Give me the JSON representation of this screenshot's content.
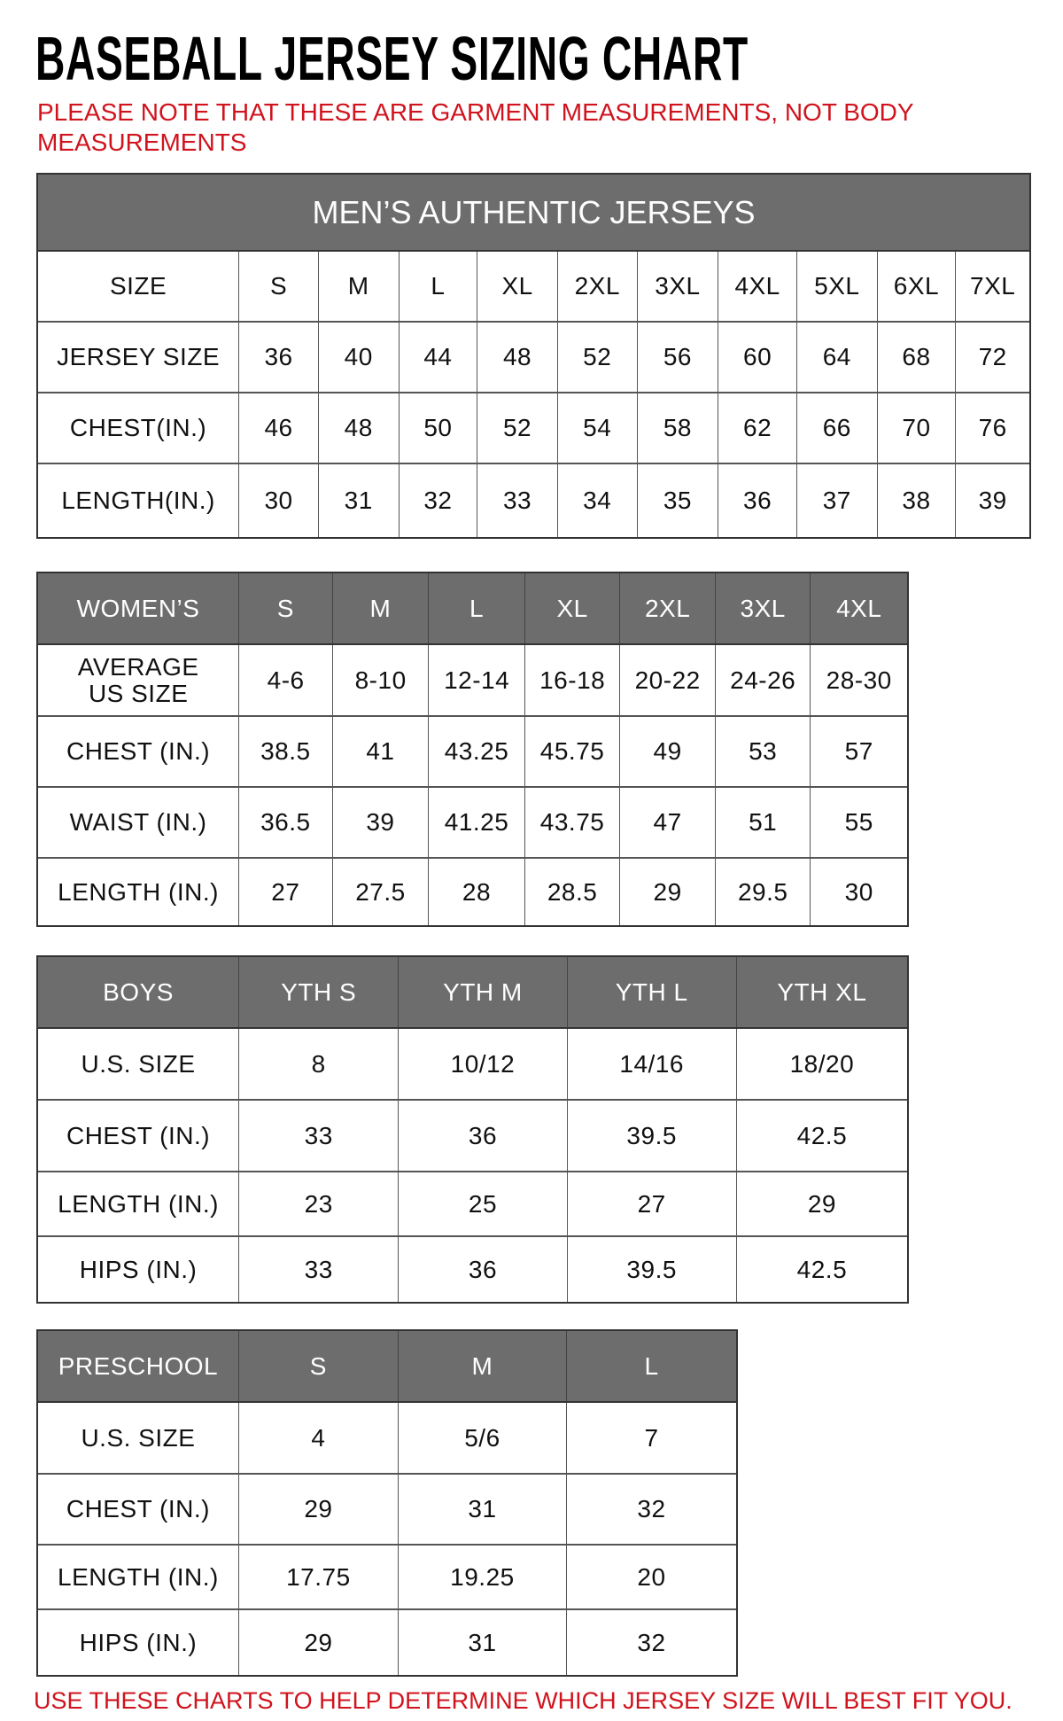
{
  "title": "BASEBALL JERSEY SIZING CHART",
  "note": "PLEASE NOTE THAT THESE ARE GARMENT MEASUREMENTS, NOT BODY MEASUREMENTS",
  "footer": "USE THESE CHARTS TO HELP DETERMINE WHICH JERSEY SIZE WILL BEST FIT YOU.",
  "colors": {
    "header_bg": "#6d6d6d",
    "accent_red": "#d0131d"
  },
  "tables": [
    {
      "name": "mens",
      "band_title": "MEN’S AUTHENTIC JERSEYS",
      "header_gray": false,
      "rows": [
        [
          "SIZE",
          "S",
          "M",
          "L",
          "XL",
          "2XL",
          "3XL",
          "4XL",
          "5XL",
          "6XL",
          "7XL"
        ],
        [
          "JERSEY SIZE",
          "36",
          "40",
          "44",
          "48",
          "52",
          "56",
          "60",
          "64",
          "68",
          "72"
        ],
        [
          "CHEST(IN.)",
          "46",
          "48",
          "50",
          "52",
          "54",
          "58",
          "62",
          "66",
          "70",
          "76"
        ],
        [
          "LENGTH(IN.)",
          "30",
          "31",
          "32",
          "33",
          "34",
          "35",
          "36",
          "37",
          "38",
          "39"
        ]
      ]
    },
    {
      "name": "womens",
      "header_gray": true,
      "rows": [
        [
          "WOMEN’S",
          "S",
          "M",
          "L",
          "XL",
          "2XL",
          "3XL",
          "4XL"
        ],
        [
          "AVERAGE US SIZE",
          "4-6",
          "8-10",
          "12-14",
          "16-18",
          "20-22",
          "24-26",
          "28-30"
        ],
        [
          "CHEST (IN.)",
          "38.5",
          "41",
          "43.25",
          "45.75",
          "49",
          "53",
          "57"
        ],
        [
          "WAIST (IN.)",
          "36.5",
          "39",
          "41.25",
          "43.75",
          "47",
          "51",
          "55"
        ],
        [
          "LENGTH (IN.)",
          "27",
          "27.5",
          "28",
          "28.5",
          "29",
          "29.5",
          "30"
        ]
      ]
    },
    {
      "name": "boys",
      "header_gray": true,
      "rows": [
        [
          "BOYS",
          "YTH S",
          "YTH M",
          "YTH L",
          "YTH XL"
        ],
        [
          "U.S. SIZE",
          "8",
          "10/12",
          "14/16",
          "18/20"
        ],
        [
          "CHEST (IN.)",
          "33",
          "36",
          "39.5",
          "42.5"
        ],
        [
          "LENGTH (IN.)",
          "23",
          "25",
          "27",
          "29"
        ],
        [
          "HIPS (IN.)",
          "33",
          "36",
          "39.5",
          "42.5"
        ]
      ]
    },
    {
      "name": "preschool",
      "header_gray": true,
      "rows": [
        [
          "PRESCHOOL",
          "S",
          "M",
          "L"
        ],
        [
          "U.S. SIZE",
          "4",
          "5/6",
          "7"
        ],
        [
          "CHEST (IN.)",
          "29",
          "31",
          "32"
        ],
        [
          "LENGTH (IN.)",
          "17.75",
          "19.25",
          "20"
        ],
        [
          "HIPS (IN.)",
          "29",
          "31",
          "32"
        ]
      ]
    }
  ]
}
